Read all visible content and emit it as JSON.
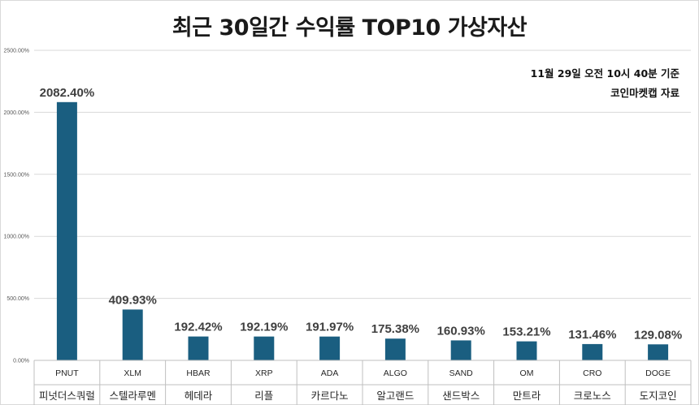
{
  "title": "최근 30일간 수익률 TOP10 가상자산",
  "notes": [
    "11월 29일 오전 10시 40분 기준",
    "코인마켓캡 자료"
  ],
  "colors": {
    "bar": "#1a5e80",
    "grid": "#d9d9d9",
    "text": "#404040"
  },
  "chart_data": {
    "type": "bar",
    "title": "최근 30일간 수익률 TOP10 가상자산",
    "categories": [
      "PNUT",
      "XLM",
      "HBAR",
      "XRP",
      "ADA",
      "ALGO",
      "SAND",
      "OM",
      "CRO",
      "DOGE"
    ],
    "categories_ko": [
      "피넛더스쿼럴",
      "스텔라루멘",
      "헤데라",
      "리플",
      "카르다노",
      "알고랜드",
      "샌드박스",
      "만트라",
      "크로노스",
      "도지코인"
    ],
    "values": [
      2082.4,
      409.93,
      192.42,
      192.19,
      191.97,
      175.38,
      160.93,
      153.21,
      131.46,
      129.08
    ],
    "data_labels": [
      "2082.40%",
      "409.93%",
      "192.42%",
      "192.19%",
      "191.97%",
      "175.38%",
      "160.93%",
      "153.21%",
      "131.46%",
      "129.08%"
    ],
    "ylim": [
      0,
      2500
    ],
    "yticks": [
      0,
      500,
      1000,
      1500,
      2000,
      2500
    ],
    "ytick_labels": [
      "0.00%",
      "500.00%",
      "1000.00%",
      "1500.00%",
      "2000.00%",
      "2500.00%"
    ],
    "grid": true,
    "legend": "none"
  }
}
